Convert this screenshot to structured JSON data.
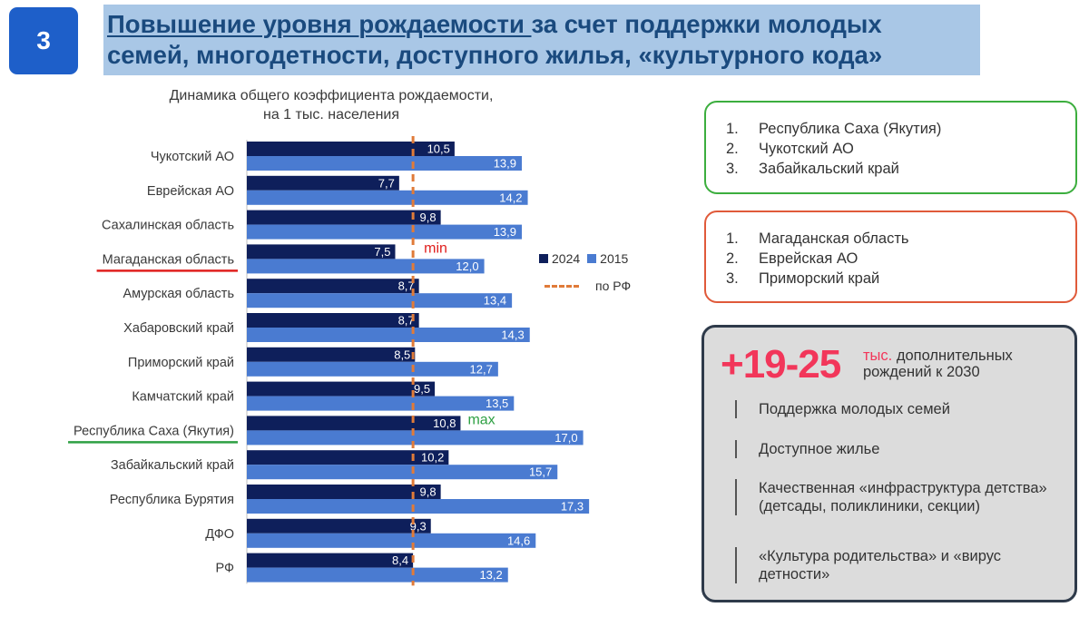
{
  "slide_number": "3",
  "title": {
    "underlined": "Повышение уровня рождаемости ",
    "line1_rest": "за счет поддержки молодых",
    "line2": "семей, многодетности, доступного жилья, «культурного кода»"
  },
  "chart_data": {
    "type": "bar",
    "orientation": "horizontal",
    "title_line1": "Динамика общего коэффициента рождаемости,",
    "title_line2": "на 1 тыс. населения",
    "categories": [
      "Чукотский АО",
      "Еврейская АО",
      "Сахалинская область",
      "Магаданская область",
      "Амурская область",
      "Хабаровский край",
      "Приморский край",
      "Камчатский край",
      "Республика Саха (Якутия)",
      "Забайкальский край",
      "Республика Бурятия",
      "ДФО",
      "РФ"
    ],
    "series": [
      {
        "name": "2024",
        "color": "#0e1f5b",
        "values": [
          10.5,
          7.7,
          9.8,
          7.5,
          8.7,
          8.7,
          8.5,
          9.5,
          10.8,
          10.2,
          9.8,
          9.3,
          8.4
        ],
        "labels": [
          "10,5",
          "7,7",
          "9,8",
          "7,5",
          "8,7",
          "8,7",
          "8,5",
          "9,5",
          "10,8",
          "10,2",
          "9,8",
          "9,3",
          "8,4"
        ]
      },
      {
        "name": "2015",
        "color": "#4a7bd1",
        "values": [
          13.9,
          14.2,
          13.9,
          12.0,
          13.4,
          14.3,
          12.7,
          13.5,
          17.0,
          15.7,
          17.3,
          14.6,
          13.2
        ],
        "labels": [
          "13,9",
          "14,2",
          "13,9",
          "12,0",
          "13,4",
          "14,3",
          "12,7",
          "13,5",
          "17,0",
          "15,7",
          "17,3",
          "14,6",
          "13,2"
        ]
      }
    ],
    "reference_line": {
      "name": "по РФ",
      "value": 8.4,
      "color": "#e07b39"
    },
    "annotations": [
      {
        "text": "min",
        "category": "Магаданская область",
        "color": "#e0201e"
      },
      {
        "text": "max",
        "category": "Республика Саха (Якутия)",
        "color": "#2ea043"
      }
    ],
    "highlighted_categories": [
      {
        "category": "Магаданская область",
        "color": "#e0201e"
      },
      {
        "category": "Республика Саха (Якутия)",
        "color": "#2ea043"
      }
    ],
    "legend_position": "right"
  },
  "top_list": {
    "items": [
      {
        "num": "1.",
        "text": "Республика Саха (Якутия)"
      },
      {
        "num": "2.",
        "text": "Чукотский АО"
      },
      {
        "num": "3.",
        "text": "Забайкальский край"
      }
    ]
  },
  "bottom_list": {
    "items": [
      {
        "num": "1.",
        "text": "Магаданская область"
      },
      {
        "num": "2.",
        "text": "Еврейская АО"
      },
      {
        "num": "3.",
        "text": "Приморский край"
      }
    ]
  },
  "forecast": {
    "big_number": "+19-25",
    "unit": "тыс.",
    "caption_rest": " дополнительных",
    "caption_line2": "рождений к 2030",
    "points": [
      "Поддержка молодых семей",
      "Доступное жилье",
      "Качественная «инфраструктура детства» (детсады, поликлиники, секции)",
      "«Культура родительства» и «вирус детности»"
    ]
  }
}
